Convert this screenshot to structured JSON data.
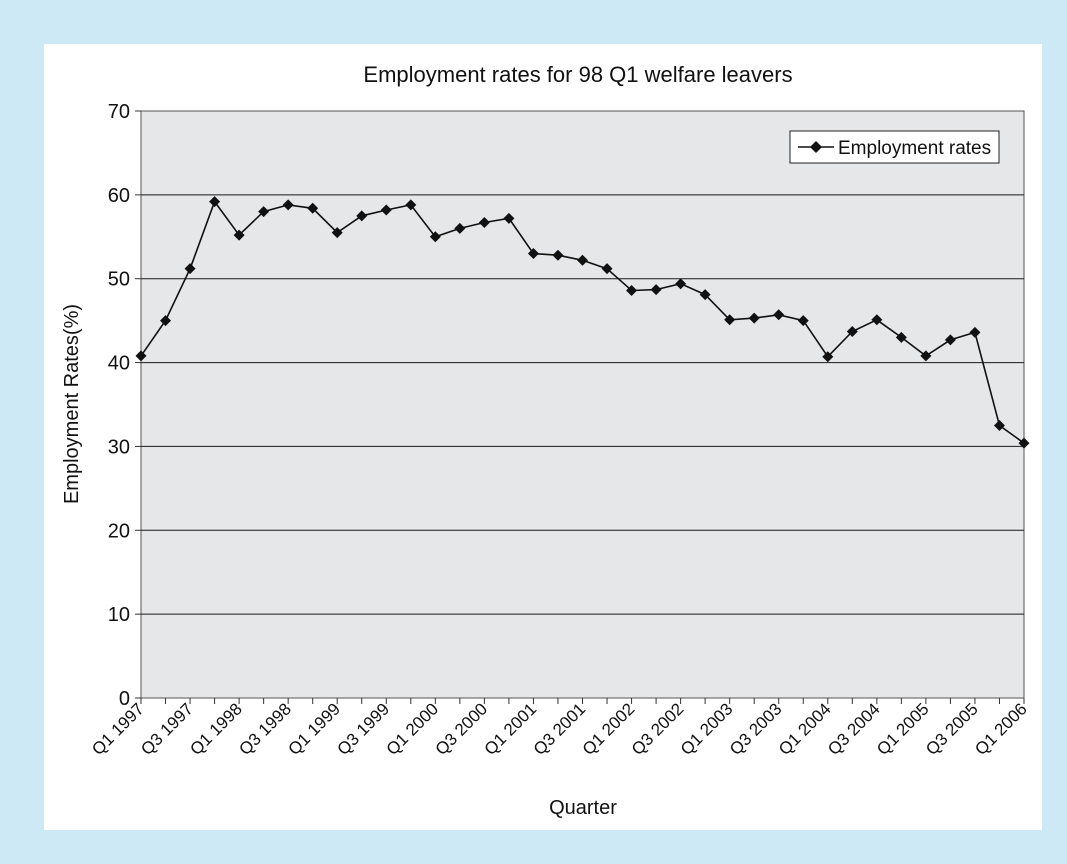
{
  "chart_data": {
    "type": "line",
    "title": "Employment rates for 98 Q1 welfare leavers",
    "xlabel": "Quarter",
    "ylabel": "Employment Rates(%)",
    "ylim": [
      0,
      70
    ],
    "yticks": [
      0,
      10,
      20,
      30,
      40,
      50,
      60,
      70
    ],
    "grid": true,
    "legend_position": "top-right",
    "colors": {
      "plot_background": "#e6e7e8",
      "line": "#111111",
      "frame": "#cde9f6",
      "panel": "#ffffff"
    },
    "categories": [
      "Q1 1997",
      "Q2 1997",
      "Q3 1997",
      "Q4 1997",
      "Q1 1998",
      "Q2 1998",
      "Q3 1998",
      "Q4 1998",
      "Q1 1999",
      "Q2 1999",
      "Q3 1999",
      "Q4 1999",
      "Q1 2000",
      "Q2 2000",
      "Q3 2000",
      "Q4 2000",
      "Q1 2001",
      "Q2 2001",
      "Q3 2001",
      "Q4 2001",
      "Q1 2002",
      "Q2 2002",
      "Q3 2002",
      "Q4 2002",
      "Q1 2003",
      "Q2 2003",
      "Q3 2003",
      "Q4 2003",
      "Q1 2004",
      "Q2 2004",
      "Q3 2004",
      "Q4 2004",
      "Q1 2005",
      "Q2 2005",
      "Q3 2005",
      "Q4 2005",
      "Q1 2006"
    ],
    "tick_labels": [
      "Q1 1997",
      "Q3 1997",
      "Q1 1998",
      "Q3 1998",
      "Q1 1999",
      "Q3 1999",
      "Q1 2000",
      "Q3 2000",
      "Q1 2001",
      "Q3 2001",
      "Q1 2002",
      "Q3 2002",
      "Q1 2003",
      "Q3 2003",
      "Q1 2004",
      "Q3 2004",
      "Q1 2005",
      "Q3 2005",
      "Q1 2006"
    ],
    "series": [
      {
        "name": "Employment rates",
        "marker": "diamond",
        "values": [
          40.8,
          45.0,
          51.2,
          59.2,
          55.2,
          58.0,
          58.8,
          58.4,
          55.5,
          57.5,
          58.2,
          58.8,
          55.0,
          56.0,
          56.7,
          57.2,
          53.0,
          52.8,
          52.2,
          51.2,
          48.6,
          48.7,
          49.4,
          48.1,
          45.1,
          45.3,
          45.7,
          45.0,
          40.7,
          43.7,
          45.1,
          43.0,
          40.8,
          42.7,
          43.6,
          32.5,
          30.4
        ]
      }
    ]
  }
}
